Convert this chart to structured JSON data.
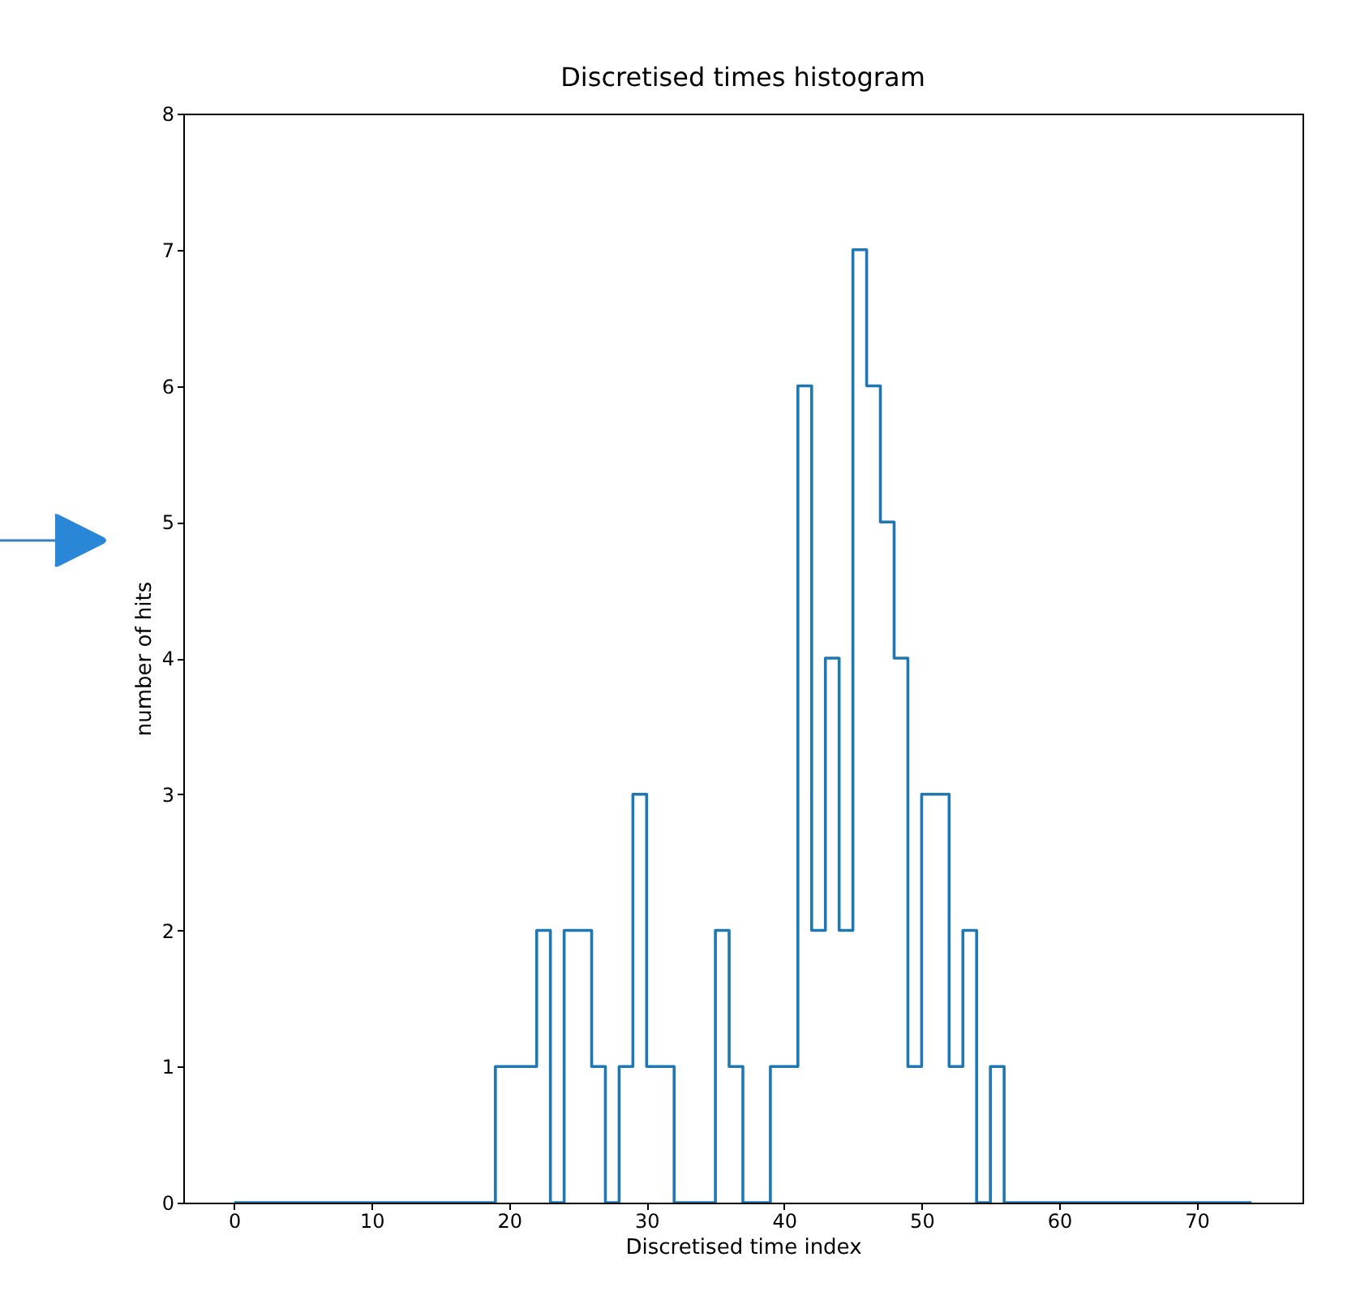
{
  "chart_data": {
    "type": "histogram",
    "title": "Discretised times histogram",
    "xlabel": "Discretised time index",
    "ylabel": "number of hits",
    "bins": [
      0,
      1,
      2,
      3,
      4,
      5,
      6,
      7,
      8,
      9,
      10,
      11,
      12,
      13,
      14,
      15,
      16,
      17,
      18,
      19,
      20,
      21,
      22,
      23,
      24,
      25,
      26,
      27,
      28,
      29,
      30,
      31,
      32,
      33,
      34,
      35,
      36,
      37,
      38,
      39,
      40,
      41,
      42,
      43,
      44,
      45,
      46,
      47,
      48,
      49,
      50,
      51,
      52,
      53,
      54,
      55,
      56,
      57,
      58,
      59,
      60,
      61,
      62,
      63,
      64,
      65,
      66,
      67,
      68,
      69,
      70,
      71,
      72,
      73,
      74
    ],
    "values": [
      0,
      0,
      0,
      0,
      0,
      0,
      0,
      0,
      0,
      0,
      0,
      0,
      0,
      0,
      0,
      0,
      0,
      0,
      0,
      1,
      1,
      1,
      2,
      0,
      2,
      2,
      1,
      0,
      1,
      3,
      1,
      1,
      0,
      0,
      0,
      2,
      1,
      0,
      0,
      1,
      1,
      6,
      2,
      4,
      2,
      7,
      6,
      5,
      4,
      1,
      3,
      3,
      1,
      2,
      0,
      1,
      0,
      0,
      0,
      0,
      0,
      0,
      0,
      0,
      0,
      0,
      0,
      0,
      0,
      0,
      0,
      0,
      0,
      0
    ],
    "color": "#1f77b4",
    "xlim": [
      -3.7,
      77.7
    ],
    "ylim": [
      0,
      8
    ],
    "xticks": [
      0,
      10,
      20,
      30,
      40,
      50,
      60,
      70
    ],
    "yticks": [
      0,
      1,
      2,
      3,
      4,
      5,
      6,
      7,
      8
    ]
  }
}
